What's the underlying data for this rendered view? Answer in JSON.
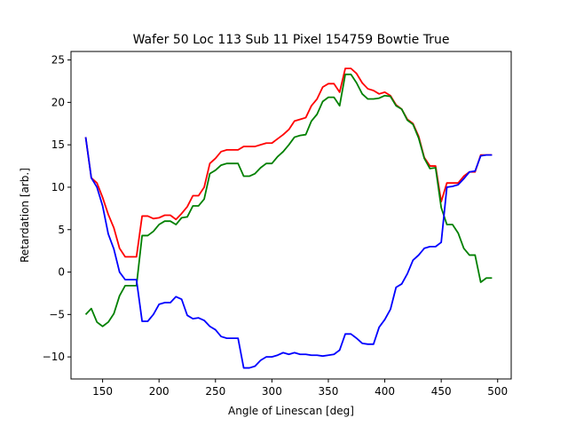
{
  "chart_data": {
    "type": "line",
    "title": "Wafer 50 Loc 113 Sub 11 Pixel 154759 Bowtie True",
    "xlabel": "Angle of Linescan [deg]",
    "ylabel": "Retardation [arb.]",
    "xlim": [
      122,
      512
    ],
    "ylim": [
      -12.6,
      26
    ],
    "xticks": [
      150,
      200,
      250,
      300,
      350,
      400,
      450,
      500
    ],
    "yticks": [
      -10,
      -5,
      0,
      5,
      10,
      15,
      20,
      25
    ],
    "grid": false,
    "x": [
      135,
      140,
      145,
      150,
      155,
      160,
      165,
      170,
      175,
      180,
      185,
      190,
      195,
      200,
      205,
      210,
      215,
      220,
      225,
      230,
      235,
      240,
      245,
      250,
      255,
      260,
      265,
      270,
      275,
      280,
      285,
      290,
      295,
      300,
      305,
      310,
      315,
      320,
      325,
      330,
      335,
      340,
      345,
      350,
      355,
      360,
      365,
      370,
      375,
      380,
      385,
      390,
      395,
      400,
      405,
      410,
      415,
      420,
      425,
      430,
      435,
      440,
      445,
      450,
      455,
      460,
      465,
      470,
      475,
      480,
      485,
      490,
      495
    ],
    "series": [
      {
        "name": "red",
        "color": "#ff0000",
        "values": [
          15.9,
          11.1,
          10.5,
          8.8,
          6.8,
          5.2,
          2.8,
          1.8,
          1.8,
          1.8,
          6.6,
          6.6,
          6.3,
          6.4,
          6.7,
          6.7,
          6.2,
          6.9,
          7.7,
          9.0,
          9.0,
          10.0,
          12.8,
          13.4,
          14.2,
          14.4,
          14.4,
          14.4,
          14.8,
          14.8,
          14.8,
          15.0,
          15.2,
          15.2,
          15.7,
          16.2,
          16.8,
          17.8,
          18.0,
          18.2,
          19.6,
          20.4,
          21.8,
          22.2,
          22.2,
          21.2,
          24.0,
          24.0,
          23.4,
          22.3,
          21.6,
          21.4,
          21.0,
          21.2,
          20.8,
          19.7,
          19.2,
          18.0,
          17.5,
          16.0,
          13.5,
          12.5,
          12.5,
          8.3,
          10.5,
          10.5,
          10.5,
          11.3,
          11.8,
          11.8,
          13.8,
          13.8,
          13.8
        ],
        "label": ""
      },
      {
        "name": "green",
        "color": "#008000",
        "values": [
          -5.0,
          -4.3,
          -5.9,
          -6.4,
          -5.9,
          -4.9,
          -2.8,
          -1.6,
          -1.6,
          -1.6,
          4.3,
          4.3,
          4.8,
          5.6,
          6.0,
          6.0,
          5.6,
          6.4,
          6.5,
          7.8,
          7.8,
          8.6,
          11.6,
          12.0,
          12.6,
          12.8,
          12.8,
          12.8,
          11.3,
          11.3,
          11.6,
          12.3,
          12.8,
          12.8,
          13.6,
          14.2,
          15.0,
          15.9,
          16.1,
          16.2,
          17.8,
          18.6,
          20.1,
          20.6,
          20.6,
          19.6,
          23.3,
          23.3,
          22.3,
          21.0,
          20.4,
          20.4,
          20.5,
          20.8,
          20.7,
          19.6,
          19.2,
          17.9,
          17.4,
          15.8,
          13.4,
          12.2,
          12.3,
          7.6,
          5.6,
          5.6,
          4.6,
          2.8,
          2.0,
          2.0,
          -1.2,
          -0.7,
          -0.7
        ],
        "label": ""
      },
      {
        "name": "blue",
        "color": "#0000ff",
        "values": [
          15.9,
          11.1,
          10.0,
          7.8,
          4.5,
          2.7,
          0.0,
          -0.9,
          -0.9,
          -0.9,
          -5.8,
          -5.8,
          -5.0,
          -3.8,
          -3.6,
          -3.6,
          -2.9,
          -3.2,
          -5.1,
          -5.5,
          -5.4,
          -5.7,
          -6.4,
          -6.8,
          -7.6,
          -7.8,
          -7.8,
          -7.8,
          -11.3,
          -11.3,
          -11.1,
          -10.4,
          -10.0,
          -10.0,
          -9.8,
          -9.5,
          -9.7,
          -9.5,
          -9.7,
          -9.7,
          -9.8,
          -9.8,
          -9.9,
          -9.8,
          -9.7,
          -9.2,
          -7.3,
          -7.3,
          -7.8,
          -8.4,
          -8.5,
          -8.5,
          -6.5,
          -5.6,
          -4.4,
          -1.8,
          -1.4,
          -0.2,
          1.4,
          2.0,
          2.8,
          3.0,
          3.0,
          3.5,
          10.0,
          10.1,
          10.3,
          11.0,
          11.8,
          11.9,
          13.7,
          13.8,
          13.8
        ],
        "label": ""
      }
    ]
  }
}
